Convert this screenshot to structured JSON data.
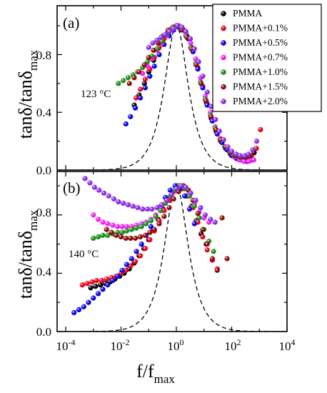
{
  "chart_data": [
    {
      "panel": "(a)",
      "annotation": "123 °C",
      "type": "scatter",
      "xscale": "log",
      "xlim": [
        0.0001,
        10000
      ],
      "ylim": [
        0.0,
        1.05
      ],
      "yticks": [
        0.0,
        0.4,
        0.8
      ],
      "ylabel": "tanδ/tanδmax",
      "series": [
        {
          "name": "PMMA",
          "color": "#000000",
          "x": [
            0.03,
            0.045,
            0.07,
            0.1,
            0.15,
            0.22,
            0.33,
            0.5,
            0.75,
            1.1,
            1.6,
            2.4,
            3.5,
            5.2,
            7.8,
            12,
            18,
            27,
            40,
            60,
            90,
            135,
            200,
            300,
            450,
            650
          ],
          "y": [
            0.45,
            0.52,
            0.6,
            0.68,
            0.76,
            0.84,
            0.9,
            0.95,
            0.98,
            1.0,
            0.98,
            0.93,
            0.85,
            0.73,
            0.6,
            0.47,
            0.36,
            0.27,
            0.2,
            0.15,
            0.11,
            0.09,
            0.08,
            0.08,
            0.09,
            0.12
          ]
        },
        {
          "name": "PMMA+0.1%",
          "color": "#e8001c",
          "x": [
            0.035,
            0.05,
            0.075,
            0.11,
            0.16,
            0.24,
            0.36,
            0.55,
            0.8,
            1.2,
            1.8,
            2.7,
            4,
            6,
            9,
            13,
            20,
            30,
            45,
            68,
            100,
            150,
            230,
            350,
            520,
            780,
            1100
          ],
          "y": [
            0.5,
            0.56,
            0.63,
            0.7,
            0.78,
            0.85,
            0.91,
            0.96,
            0.99,
            1.0,
            0.97,
            0.91,
            0.83,
            0.71,
            0.58,
            0.46,
            0.35,
            0.26,
            0.2,
            0.15,
            0.11,
            0.09,
            0.08,
            0.08,
            0.1,
            0.15,
            0.28
          ]
        },
        {
          "name": "PMMA+0.5%",
          "color": "#0a00e8",
          "x": [
            0.015,
            0.022,
            0.033,
            0.05,
            0.075,
            0.11,
            0.16,
            0.24,
            0.36,
            0.55,
            0.8,
            1.2,
            1.8,
            2.7,
            4,
            6,
            9,
            13,
            20,
            30,
            45,
            68,
            100,
            150,
            230,
            350,
            520
          ],
          "y": [
            0.32,
            0.37,
            0.43,
            0.5,
            0.57,
            0.65,
            0.72,
            0.8,
            0.87,
            0.93,
            0.97,
            0.99,
            0.97,
            0.91,
            0.82,
            0.7,
            0.57,
            0.45,
            0.34,
            0.25,
            0.19,
            0.14,
            0.1,
            0.08,
            0.07,
            0.06,
            0.07
          ]
        },
        {
          "name": "PMMA+0.7%",
          "color": "#f01ef0",
          "x": [
            0.06,
            0.09,
            0.13,
            0.2,
            0.3,
            0.45,
            0.67,
            1,
            1.5,
            2.2,
            3.3,
            5,
            7.5,
            11,
            17,
            25,
            38,
            56,
            85,
            125,
            190,
            280,
            420,
            630
          ],
          "y": [
            0.67,
            0.72,
            0.77,
            0.83,
            0.88,
            0.93,
            0.97,
            1.0,
            0.99,
            0.95,
            0.88,
            0.77,
            0.64,
            0.51,
            0.4,
            0.3,
            0.22,
            0.16,
            0.12,
            0.09,
            0.07,
            0.06,
            0.06,
            0.07
          ]
        },
        {
          "name": "PMMA+1.0%",
          "color": "#1a8c1a",
          "x": [
            0.008,
            0.012,
            0.018,
            0.027,
            0.04,
            0.06,
            0.09,
            0.13,
            0.2,
            0.3,
            0.45,
            0.67,
            1,
            1.5,
            2.2,
            3.3,
            5,
            7.5,
            11,
            17,
            25,
            38,
            56,
            85,
            125,
            190,
            280,
            420
          ],
          "y": [
            0.6,
            0.62,
            0.64,
            0.66,
            0.68,
            0.71,
            0.75,
            0.79,
            0.84,
            0.89,
            0.94,
            0.98,
            1.0,
            0.98,
            0.93,
            0.85,
            0.74,
            0.61,
            0.49,
            0.38,
            0.29,
            0.21,
            0.16,
            0.12,
            0.1,
            0.09,
            0.09,
            0.1
          ]
        },
        {
          "name": "PMMA+1.5%",
          "color": "#8b0a0a",
          "x": [
            0.02,
            0.03,
            0.045,
            0.07,
            0.1,
            0.15,
            0.22,
            0.33,
            0.5,
            0.75,
            1.1,
            1.6,
            2.4,
            3.5,
            5.2,
            7.8,
            12,
            18,
            27,
            40,
            60,
            90,
            135,
            200,
            300,
            450
          ],
          "y": [
            0.6,
            0.64,
            0.68,
            0.73,
            0.78,
            0.83,
            0.88,
            0.93,
            0.97,
            0.99,
            1.0,
            0.97,
            0.92,
            0.84,
            0.73,
            0.6,
            0.48,
            0.37,
            0.28,
            0.21,
            0.16,
            0.12,
            0.1,
            0.09,
            0.09,
            0.1
          ]
        },
        {
          "name": "PMMA+2.0%",
          "color": "#8a2be2",
          "x": [
            0.1,
            0.14,
            0.2,
            0.28,
            0.4,
            0.56,
            0.8,
            1.1,
            1.6,
            2.2,
            3.2,
            4.5,
            6.4,
            9,
            13,
            18,
            26,
            36,
            51,
            72,
            100,
            145,
            200,
            290,
            400,
            570,
            800
          ],
          "y": [
            0.85,
            0.88,
            0.9,
            0.92,
            0.94,
            0.96,
            0.98,
            1.0,
            0.99,
            0.96,
            0.91,
            0.84,
            0.75,
            0.65,
            0.54,
            0.44,
            0.35,
            0.27,
            0.21,
            0.16,
            0.13,
            0.11,
            0.1,
            0.1,
            0.11,
            0.14,
            0.2
          ]
        }
      ],
      "reference_curve": {
        "style": "dashed",
        "peak_x": 1,
        "fwhm_decades": 1.15
      }
    },
    {
      "panel": "(b)",
      "annotation": "140 °C",
      "type": "scatter",
      "xscale": "log",
      "xlim": [
        0.0001,
        10000
      ],
      "ylim": [
        0.0,
        1.05
      ],
      "yticks": [
        0.0,
        0.4,
        0.8
      ],
      "ylabel": "tanδ/tanδmax",
      "xlabel": "f/fmax",
      "xticks": [
        "10-4",
        "10-2",
        "100",
        "102",
        "104"
      ],
      "series": [
        {
          "name": "PMMA",
          "color": "#000000",
          "x": [
            0.0008,
            0.0012,
            0.0018,
            0.0027,
            0.004,
            0.006,
            0.009,
            0.013,
            0.02,
            0.03,
            0.045,
            0.067,
            0.1,
            0.15,
            0.22,
            0.33,
            0.5,
            0.75,
            1.1,
            1.6,
            2.4,
            3.5,
            5.2,
            7.8,
            12
          ],
          "y": [
            0.3,
            0.31,
            0.32,
            0.33,
            0.34,
            0.36,
            0.38,
            0.4,
            0.43,
            0.47,
            0.52,
            0.57,
            0.63,
            0.7,
            0.77,
            0.84,
            0.91,
            0.96,
            1.0,
            0.98,
            0.93,
            0.86,
            0.76,
            0.67,
            0.6
          ]
        },
        {
          "name": "PMMA+0.1%",
          "color": "#e8001c",
          "x": [
            0.0004,
            0.0006,
            0.0009,
            0.0013,
            0.002,
            0.003,
            0.0045,
            0.0067,
            0.01,
            0.015,
            0.022,
            0.033,
            0.05,
            0.075,
            0.11,
            0.16,
            0.24,
            0.36,
            0.55,
            0.8,
            1.2,
            1.8,
            2.7,
            4,
            6,
            9,
            13,
            20,
            30
          ],
          "y": [
            0.32,
            0.33,
            0.34,
            0.35,
            0.35,
            0.36,
            0.37,
            0.38,
            0.4,
            0.42,
            0.45,
            0.48,
            0.52,
            0.57,
            0.63,
            0.69,
            0.76,
            0.83,
            0.9,
            0.96,
            1.0,
            0.98,
            0.93,
            0.85,
            0.75,
            0.65,
            0.56,
            0.49,
            0.43
          ]
        },
        {
          "name": "PMMA+0.5%",
          "color": "#0a00e8",
          "x": [
            0.0002,
            0.0003,
            0.00045,
            0.00067,
            0.001,
            0.0015,
            0.0022,
            0.0033,
            0.005,
            0.0075,
            0.011,
            0.016,
            0.024,
            0.036,
            0.055,
            0.08,
            0.12,
            0.18,
            0.27,
            0.4,
            0.6,
            0.9,
            1.35,
            2,
            3,
            4.5
          ],
          "y": [
            0.13,
            0.15,
            0.17,
            0.2,
            0.23,
            0.26,
            0.29,
            0.32,
            0.35,
            0.38,
            0.42,
            0.46,
            0.5,
            0.55,
            0.6,
            0.66,
            0.72,
            0.79,
            0.86,
            0.92,
            0.97,
            1.0,
            0.98,
            0.93,
            0.84,
            0.74
          ]
        },
        {
          "name": "PMMA+0.7%",
          "color": "#f01ef0",
          "x": [
            0.001,
            0.0015,
            0.0022,
            0.0033,
            0.005,
            0.0075,
            0.011,
            0.016,
            0.024,
            0.036,
            0.055,
            0.08,
            0.12,
            0.18,
            0.27,
            0.4,
            0.6,
            0.9,
            1.35,
            2,
            3,
            4.5,
            6.7,
            10,
            15
          ],
          "y": [
            0.8,
            0.77,
            0.75,
            0.74,
            0.73,
            0.72,
            0.72,
            0.72,
            0.72,
            0.73,
            0.74,
            0.75,
            0.77,
            0.8,
            0.84,
            0.88,
            0.93,
            0.97,
            1.0,
            0.98,
            0.94,
            0.88,
            0.82,
            0.78,
            0.75
          ]
        },
        {
          "name": "PMMA+1.0%",
          "color": "#1a8c1a",
          "x": [
            0.001,
            0.0015,
            0.0022,
            0.0033,
            0.005,
            0.0075,
            0.011,
            0.016,
            0.024,
            0.036,
            0.055,
            0.08,
            0.12,
            0.18,
            0.27,
            0.4,
            0.6,
            0.9,
            1.35,
            2,
            3,
            4.5,
            6.7,
            10,
            15,
            22
          ],
          "y": [
            0.64,
            0.65,
            0.66,
            0.66,
            0.67,
            0.68,
            0.68,
            0.69,
            0.7,
            0.71,
            0.72,
            0.74,
            0.76,
            0.79,
            0.83,
            0.88,
            0.93,
            0.97,
            1.0,
            0.98,
            0.93,
            0.86,
            0.78,
            0.7,
            0.62,
            0.55
          ]
        },
        {
          "name": "PMMA+1.5%",
          "color": "#8b0a0a",
          "x": [
            0.003,
            0.0045,
            0.0067,
            0.01,
            0.015,
            0.022,
            0.033,
            0.05,
            0.075,
            0.11,
            0.16,
            0.24,
            0.36,
            0.55,
            0.8,
            1.2,
            1.8,
            2.7,
            4,
            6,
            9,
            13,
            20,
            30,
            45,
            68
          ],
          "y": [
            0.7,
            0.68,
            0.66,
            0.65,
            0.64,
            0.64,
            0.64,
            0.65,
            0.66,
            0.68,
            0.7,
            0.74,
            0.79,
            0.85,
            0.91,
            0.96,
            1.0,
            0.97,
            0.9,
            0.81,
            0.7,
            0.6,
            0.5,
            0.42,
            0.78,
            0.5
          ]
        },
        {
          "name": "PMMA+2.0%",
          "color": "#8a2be2",
          "x": [
            0.0005,
            0.00075,
            0.0011,
            0.0016,
            0.0024,
            0.0036,
            0.0055,
            0.008,
            0.012,
            0.018,
            0.027,
            0.04,
            0.06,
            0.09,
            0.13,
            0.2,
            0.3,
            0.45,
            0.67,
            1,
            1.5,
            2.2,
            3.3,
            5,
            7.5,
            11,
            17,
            25
          ],
          "y": [
            1.05,
            1.02,
            0.99,
            0.97,
            0.95,
            0.93,
            0.91,
            0.89,
            0.88,
            0.87,
            0.86,
            0.85,
            0.84,
            0.84,
            0.84,
            0.85,
            0.87,
            0.9,
            0.94,
            0.98,
            1.0,
            0.99,
            0.95,
            0.9,
            0.85,
            0.8,
            0.77,
            0.75
          ]
        }
      ],
      "reference_curve": {
        "style": "dashed",
        "peak_x": 1,
        "fwhm_decades": 1.15
      }
    }
  ],
  "legend": {
    "placement": "top-right",
    "entries": [
      "PMMA",
      "PMMA+0.1%",
      "PMMA+0.5%",
      "PMMA+0.7%",
      "PMMA+1.0%",
      "PMMA+1.5%",
      "PMMA+2.0%"
    ],
    "colors": [
      "#000000",
      "#e8001c",
      "#0a00e8",
      "#f01ef0",
      "#1a8c1a",
      "#8b0a0a",
      "#8a2be2"
    ]
  },
  "axis_text": {
    "ylabel_main": "tanδ/tanδ",
    "ylabel_sub": "max",
    "xlabel_main": "f/f",
    "xlabel_sub": "max",
    "ytick_labels": [
      "0.0",
      "0.4",
      "0.8"
    ],
    "xtick_bases": [
      "10",
      "10",
      "10",
      "10",
      "10"
    ],
    "xtick_exps": [
      "-4",
      "-2",
      "0",
      "2",
      "4"
    ]
  }
}
